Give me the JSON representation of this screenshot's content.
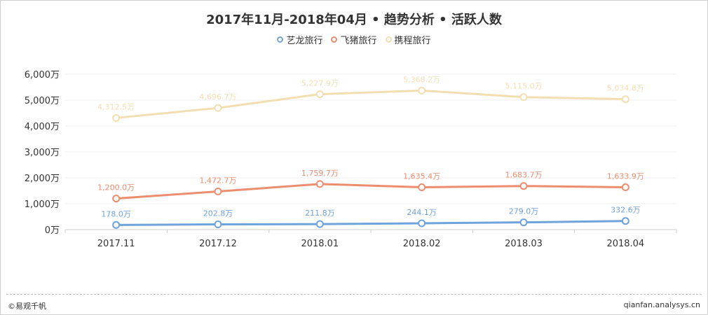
{
  "chart_data": {
    "type": "line",
    "title": "2017年11月-2018年04月 • 趋势分析 • 活跃人数",
    "xlabel": "",
    "ylabel": "",
    "categories": [
      "2017.11",
      "2017.12",
      "2018.01",
      "2018.02",
      "2018.03",
      "2018.04"
    ],
    "y_ticks": [
      "0万",
      "1,000万",
      "2,000万",
      "3,000万",
      "4,000万",
      "5,000万",
      "6,000万"
    ],
    "ylim": [
      0,
      6000
    ],
    "y_unit": "万",
    "grid": true,
    "legend_position": "top",
    "series": [
      {
        "name": "艺龙旅行",
        "color": "#6fa3dc",
        "values": [
          178.0,
          202.8,
          211.8,
          244.1,
          279.0,
          332.6
        ],
        "labels": [
          "178.0万",
          "202.8万",
          "211.8万",
          "244.1万",
          "279.0万",
          "332.6万"
        ]
      },
      {
        "name": "飞猪旅行",
        "color": "#ec8d6f",
        "values": [
          1200.0,
          1472.7,
          1759.7,
          1635.4,
          1683.7,
          1633.9
        ],
        "labels": [
          "1,200.0万",
          "1,472.7万",
          "1,759.7万",
          "1,635.4万",
          "1,683.7万",
          "1,633.9万"
        ]
      },
      {
        "name": "携程旅行",
        "color": "#f3deb1",
        "values": [
          4312.5,
          4696.7,
          5227.9,
          5368.2,
          5115.0,
          5034.8
        ],
        "labels": [
          "4,312.5万",
          "4,696.7万",
          "5,227.9万",
          "5,368.2万",
          "5,115.0万",
          "5,034.8万"
        ]
      }
    ]
  },
  "footer": {
    "copyright": "©易观千帆",
    "website": "qianfan.analysys.cn"
  }
}
